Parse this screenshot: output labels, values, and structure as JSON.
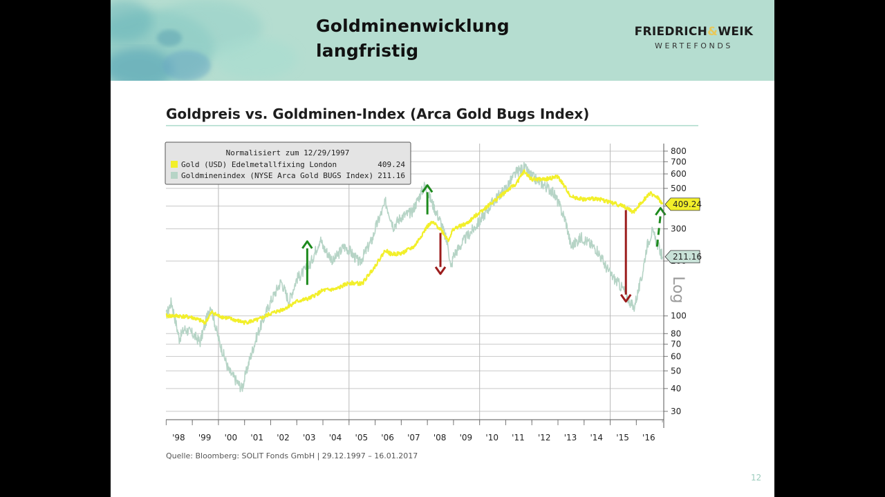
{
  "header": {
    "title": "Goldminenwicklung\nlangfristig",
    "brand_part1": "FRIEDRICH",
    "brand_amp": "&",
    "brand_part2": "WEIK",
    "brand_sub": "WERTEFONDS"
  },
  "chart_heading": "Goldpreis vs. Goldminen-Index (Arca Gold Bugs Index)",
  "source": "Quelle: Bloomberg: SOLIT Fonds GmbH | 29.12.1997 – 16.01.2017",
  "page_number": "12",
  "colors": {
    "header_band": "#b5ddd0",
    "gold_series": "#f2ef2a",
    "mines_series": "#b6d4c6",
    "arrow_up": "#1d8a1d",
    "arrow_down": "#9c1d1d"
  },
  "chart_data": {
    "type": "line",
    "legend_title": "Normalisiert zum 12/29/1997",
    "legend_position": "top-left",
    "log_scale": true,
    "log_label": "Log",
    "grid": true,
    "y_ticks": [
      30,
      40,
      50,
      60,
      70,
      80,
      100,
      200,
      300,
      400,
      500,
      600,
      700,
      800
    ],
    "ylim": [
      27,
      880
    ],
    "xlim": [
      1997.99,
      2017.05
    ],
    "x_tick_labels": [
      "'98",
      "'99",
      "'00",
      "'01",
      "'02",
      "'03",
      "'04",
      "'05",
      "'06",
      "'07",
      "'08",
      "'09",
      "'10",
      "'11",
      "'12",
      "'13",
      "'14",
      "'15",
      "'16"
    ],
    "x_tick_positions": [
      1998,
      1999,
      2000,
      2001,
      2002,
      2003,
      2004,
      2005,
      2006,
      2007,
      2008,
      2009,
      2010,
      2011,
      2012,
      2013,
      2014,
      2015,
      2016
    ],
    "series": [
      {
        "name": "Gold (USD) Edelmetallfixing London",
        "last_value": "409.24",
        "label_value": 409.24,
        "color": "#f2ef2a",
        "x": [
          1998.0,
          1998.5,
          1999.0,
          1999.5,
          1999.75,
          2000.0,
          2000.5,
          2001.0,
          2001.5,
          2002.0,
          2002.5,
          2003.0,
          2003.5,
          2004.0,
          2004.5,
          2005.0,
          2005.5,
          2006.0,
          2006.4,
          2006.6,
          2007.0,
          2007.5,
          2008.0,
          2008.2,
          2008.5,
          2008.8,
          2009.0,
          2009.5,
          2010.0,
          2010.5,
          2011.0,
          2011.4,
          2011.7,
          2012.0,
          2012.5,
          2013.0,
          2013.3,
          2013.5,
          2014.0,
          2014.5,
          2015.0,
          2015.5,
          2015.9,
          2016.2,
          2016.5,
          2016.8,
          2017.0
        ],
        "y": [
          100,
          100,
          98,
          92,
          105,
          100,
          96,
          92,
          95,
          103,
          109,
          120,
          125,
          138,
          140,
          152,
          150,
          188,
          230,
          218,
          220,
          240,
          310,
          325,
          300,
          260,
          300,
          320,
          370,
          420,
          480,
          530,
          620,
          560,
          560,
          580,
          500,
          450,
          435,
          440,
          420,
          400,
          370,
          420,
          470,
          450,
          409.24
        ]
      },
      {
        "name": "Goldminenindex (NYSE Arca Gold BUGS Index)",
        "last_value": "211.16",
        "label_value": 211.16,
        "color": "#b6d4c6",
        "x": [
          1998.0,
          1998.2,
          1998.5,
          1998.7,
          1999.0,
          1999.3,
          1999.7,
          1999.8,
          2000.0,
          2000.4,
          2000.9,
          2001.2,
          2001.5,
          2002.0,
          2002.4,
          2002.7,
          2003.0,
          2003.5,
          2003.9,
          2004.0,
          2004.4,
          2004.8,
          2005.0,
          2005.4,
          2005.9,
          2006.0,
          2006.4,
          2006.7,
          2007.0,
          2007.4,
          2007.9,
          2008.2,
          2008.5,
          2008.8,
          2008.9,
          2009.0,
          2009.5,
          2010.0,
          2010.5,
          2011.0,
          2011.4,
          2011.7,
          2012.0,
          2012.4,
          2012.8,
          2013.0,
          2013.3,
          2013.5,
          2013.9,
          2014.2,
          2014.5,
          2014.8,
          2015.0,
          2015.5,
          2015.9,
          2016.2,
          2016.4,
          2016.6,
          2016.8,
          2017.0
        ],
        "y": [
          100,
          120,
          75,
          85,
          80,
          72,
          115,
          100,
          75,
          50,
          40,
          58,
          80,
          120,
          155,
          120,
          160,
          190,
          265,
          240,
          200,
          240,
          230,
          195,
          265,
          300,
          420,
          310,
          350,
          370,
          520,
          410,
          330,
          240,
          180,
          215,
          270,
          330,
          420,
          500,
          610,
          650,
          580,
          530,
          480,
          420,
          330,
          240,
          270,
          250,
          230,
          190,
          170,
          140,
          110,
          160,
          240,
          290,
          250,
          211.16
        ]
      }
    ],
    "annotations": [
      {
        "type": "arrow",
        "direction": "up",
        "color": "#1d8a1d",
        "x": 2003.4,
        "y_from": 148,
        "y_to": 256,
        "style": "solid"
      },
      {
        "type": "arrow",
        "direction": "up",
        "color": "#1d8a1d",
        "x": 2008.0,
        "y_from": 360,
        "y_to": 520,
        "style": "solid"
      },
      {
        "type": "arrow",
        "direction": "down",
        "color": "#9c1d1d",
        "x": 2008.5,
        "y_from": 285,
        "y_to": 170,
        "style": "solid"
      },
      {
        "type": "arrow",
        "direction": "down",
        "color": "#9c1d1d",
        "x": 2015.6,
        "y_from": 380,
        "y_to": 120,
        "style": "solid"
      },
      {
        "type": "arrow",
        "direction": "up",
        "color": "#1d8a1d",
        "x": 2016.9,
        "y_from": 240,
        "y_to": 390,
        "style": "dashed"
      }
    ]
  }
}
